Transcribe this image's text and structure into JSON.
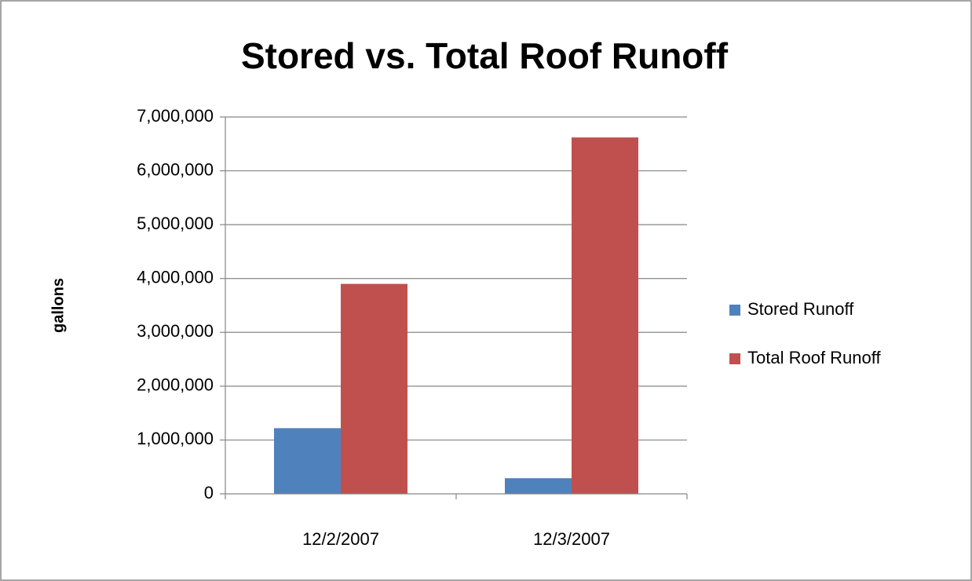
{
  "chart_data": {
    "type": "bar",
    "title": "Stored vs. Total Roof Runoff",
    "y_label": "gallons",
    "categories": [
      "12/2/2007",
      "12/3/2007"
    ],
    "series": [
      {
        "name": "Stored Runoff",
        "color": "#4f81bd",
        "values": [
          1220000,
          290000
        ]
      },
      {
        "name": "Total Roof Runoff",
        "color": "#c0504d",
        "values": [
          3900000,
          6620000
        ]
      }
    ],
    "ylim": [
      0,
      7000000
    ],
    "yticks": [
      0,
      {
        "value": 1000000,
        "label": "1,000,000"
      },
      {
        "value": 2000000,
        "label": "2,000,000"
      },
      {
        "value": 3000000,
        "label": "3,000,000"
      },
      {
        "value": 4000000,
        "label": "4,000,000"
      },
      {
        "value": 5000000,
        "label": "5,000,000"
      },
      {
        "value": 6000000,
        "label": "6,000,000"
      },
      {
        "value": 7000000,
        "label": "7,000,000"
      }
    ],
    "grid": true,
    "legend": "right"
  }
}
